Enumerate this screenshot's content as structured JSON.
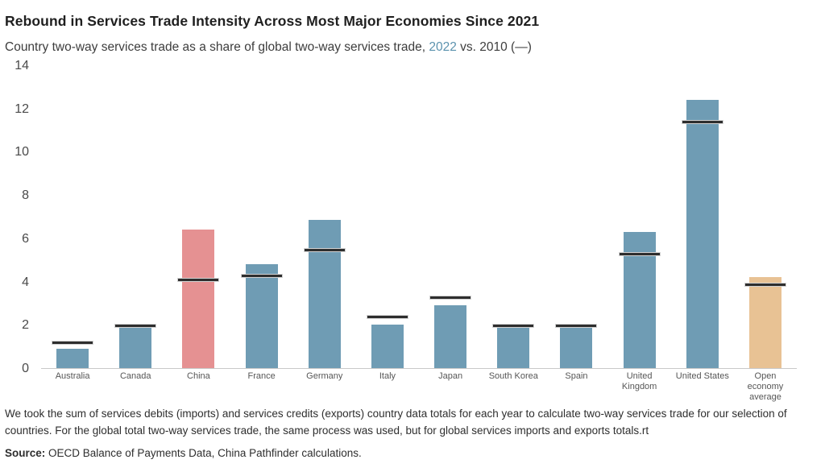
{
  "header": {
    "title": "Rebound in Services Trade Intensity Across Most Major Economies Since 2021",
    "subtitle_prefix": "Country two-way services trade as a share of global two-way services trade, ",
    "subtitle_year": "2022",
    "subtitle_suffix": " vs. 2010 (—)"
  },
  "chart_data": {
    "type": "bar",
    "title": "Rebound in Services Trade Intensity Across Most Major Economies Since 2021",
    "subtitle": "Country two-way services trade as a share of global two-way services trade, 2022 vs. 2010 (—)",
    "categories": [
      "Australia",
      "Canada",
      "China",
      "France",
      "Germany",
      "Italy",
      "Japan",
      "South Korea",
      "Spain",
      "United Kingdom",
      "United States",
      "Open economy average"
    ],
    "series": [
      {
        "name": "2022",
        "style": "bar",
        "values": [
          0.9,
          1.9,
          6.4,
          4.8,
          6.85,
          2.0,
          2.9,
          1.9,
          1.9,
          6.3,
          12.4,
          4.2
        ]
      },
      {
        "name": "2010",
        "style": "dash",
        "values": [
          1.2,
          2.0,
          4.1,
          4.3,
          5.5,
          2.4,
          3.3,
          2.0,
          2.0,
          5.3,
          11.4,
          3.9
        ]
      }
    ],
    "bar_colors": [
      "#6f9cb4",
      "#6f9cb4",
      "#e59192",
      "#6f9cb4",
      "#6f9cb4",
      "#6f9cb4",
      "#6f9cb4",
      "#6f9cb4",
      "#6f9cb4",
      "#6f9cb4",
      "#6f9cb4",
      "#e8c294"
    ],
    "dash_color": "#2e2e2e",
    "xlabel": "",
    "ylabel": "",
    "ylim": [
      0,
      14
    ],
    "yticks": [
      0,
      2,
      4,
      6,
      8,
      10,
      12,
      14
    ],
    "grid": false,
    "legend_position": "none"
  },
  "colors": {
    "bar_default": "#6f9cb4",
    "bar_china": "#e59192",
    "bar_open_economy": "#e8c294",
    "dash_2010": "#2e2e2e",
    "subtitle_year_blue": "#5b92ae",
    "axis_line": "#c9c9c9"
  },
  "footer": {
    "note": "We took the sum of services debits (imports) and services credits (exports) country data totals for each year to calculate two-way services trade for our selection of countries. For the global total two-way services trade, the same process was used, but for global services imports and exports totals.rt",
    "source_label": "Source:",
    "source_text": " OECD Balance of Payments Data, China Pathfinder calculations."
  }
}
